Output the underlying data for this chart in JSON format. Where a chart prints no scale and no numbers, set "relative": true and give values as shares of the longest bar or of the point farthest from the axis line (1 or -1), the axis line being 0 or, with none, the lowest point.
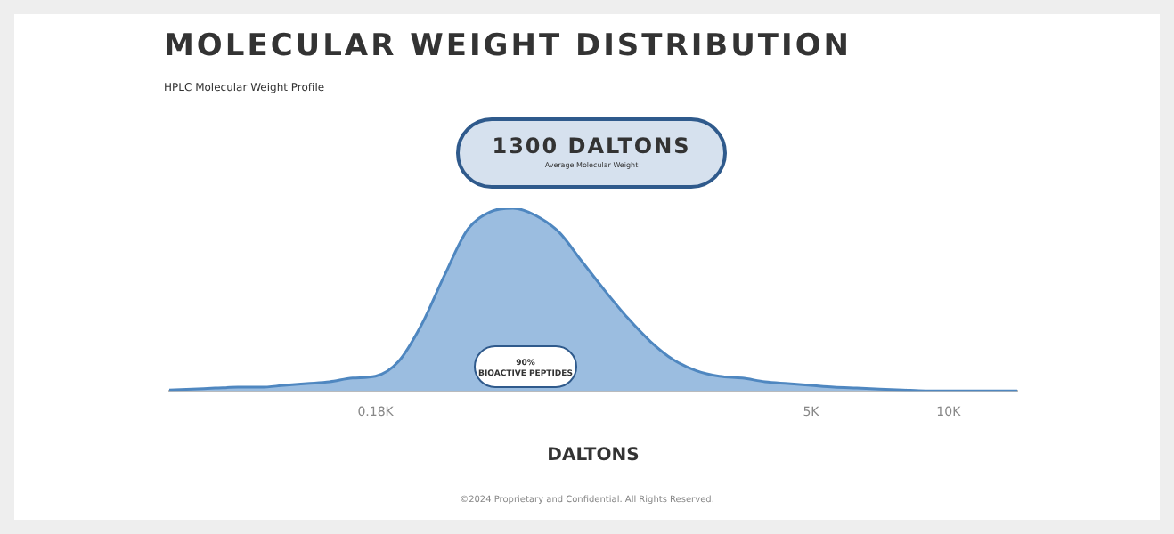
{
  "chart_data": {
    "type": "area",
    "title": "MOLECULAR WEIGHT DISTRIBUTION",
    "subtitle": "HPLC Molecular Weight Profile",
    "xlabel": "DALTONS",
    "relative": true,
    "legend": false,
    "grid": false,
    "tick_labels": "x",
    "marker": "none",
    "categories": [
      null,
      null,
      null,
      null,
      null,
      null,
      null,
      null,
      null,
      "0.18K",
      null,
      null,
      null,
      null,
      null,
      null,
      null,
      null,
      null,
      null,
      null,
      null,
      null,
      null,
      null,
      null,
      null,
      null,
      "5K",
      null,
      null,
      null,
      null,
      null,
      "10K",
      null,
      null,
      null
    ],
    "series": [
      {
        "color": "#9bbde0",
        "values": [
          0.005,
          0.01,
          0.015,
          0.02,
          0.02,
          0.03,
          0.04,
          0.05,
          0.07,
          0.08,
          0.16,
          0.36,
          0.63,
          0.88,
          0.98,
          1,
          0.96,
          0.87,
          0.71,
          0.55,
          0.4,
          0.27,
          0.17,
          0.11,
          0.08,
          0.07,
          0.05,
          0.04,
          0.03,
          0.02,
          0.015,
          0.01,
          0.005,
          0,
          0,
          0,
          0,
          0
        ]
      }
    ],
    "annotations": [
      "1300 DALTONS",
      "Average Molecular Weight",
      "90%",
      "BIOACTIVE PEPTIDES",
      "©2024 Proprietary and Confidential. All Rights Reserved."
    ]
  }
}
